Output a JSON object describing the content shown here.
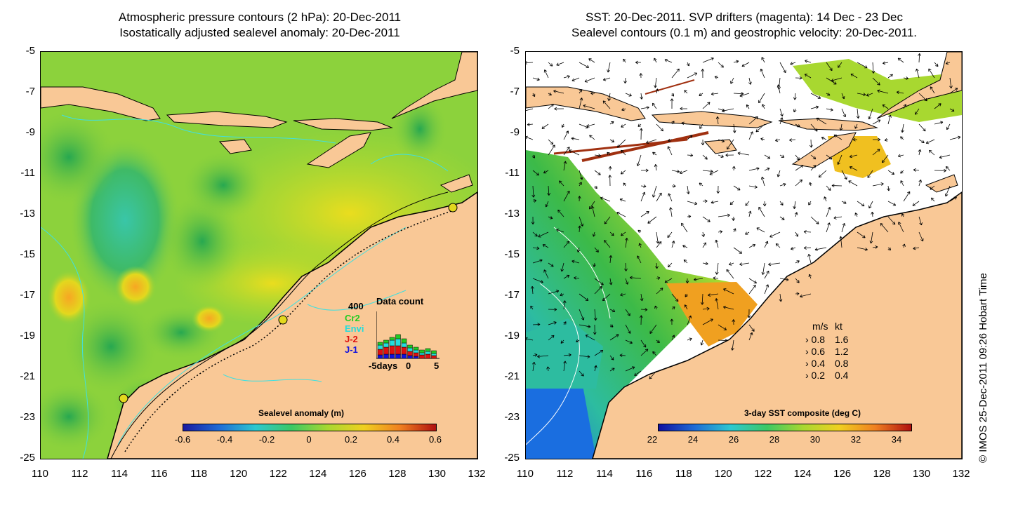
{
  "left_panel": {
    "title_line1": "Atmospheric pressure contours (2 hPa): 20-Dec-2011",
    "title_line2": "Isostatically adjusted sealevel anomaly: 20-Dec-2011",
    "colorbar": {
      "label": "Sealevel anomaly (m)",
      "ticks": [
        "-0.6",
        "-0.4",
        "-0.2",
        "0",
        "0.2",
        "0.4",
        "0.6"
      ]
    },
    "data_count": {
      "title": "Data count",
      "max": "400",
      "satellites": [
        {
          "name": "Cr2",
          "color": "#22cc22"
        },
        {
          "name": "Envi",
          "color": "#22dddd"
        },
        {
          "name": "J-2",
          "color": "#dd1111"
        },
        {
          "name": "J-1",
          "color": "#1111dd"
        }
      ],
      "xlabel_start": "-5days",
      "xlabel_mid": "0",
      "xlabel_end": "5"
    }
  },
  "right_panel": {
    "title_line1": "SST: 20-Dec-2011. SVP drifters (magenta): 14 Dec - 23 Dec",
    "title_line2": "Sealevel contours (0.1 m) and geostrophic velocity: 20-Dec-2011.",
    "colorbar": {
      "label": "3-day SST composite (deg C)",
      "ticks": [
        "22",
        "24",
        "26",
        "28",
        "30",
        "32",
        "34"
      ]
    },
    "velocity_legend": {
      "header_ms": "m/s",
      "header_kt": "kt",
      "rows": [
        {
          "ms": "0.8",
          "kt": "1.6"
        },
        {
          "ms": "0.6",
          "kt": "1.2"
        },
        {
          "ms": "0.4",
          "kt": "0.8"
        },
        {
          "ms": "0.2",
          "kt": "0.4"
        }
      ]
    }
  },
  "axes": {
    "y_ticks": [
      "-5",
      "-7",
      "-9",
      "-11",
      "-13",
      "-15",
      "-17",
      "-19",
      "-21",
      "-23",
      "-25"
    ],
    "x_ticks": [
      "110",
      "112",
      "114",
      "116",
      "118",
      "120",
      "122",
      "124",
      "126",
      "128",
      "130",
      "132"
    ]
  },
  "credit": "© IMOS 25-Dec-2011 09:26 Hobart Time",
  "colors": {
    "land": "#f9c896",
    "ocean_mid": "#8cd23c",
    "coast": "#000000",
    "contour": "#40e0e0"
  }
}
